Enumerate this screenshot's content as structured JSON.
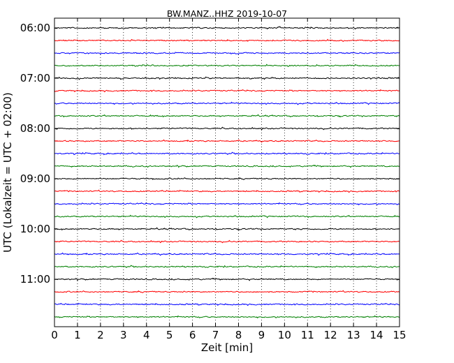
{
  "chart_data": {
    "type": "line",
    "title": "BW.MANZ..HHZ 2019-10-07",
    "xlabel": "Zeit  [min]",
    "ylabel": "UTC (Lokalzeit = UTC + 02:00)",
    "xlim": [
      0,
      15
    ],
    "x_ticks": [
      0,
      1,
      2,
      3,
      4,
      5,
      6,
      7,
      8,
      9,
      10,
      11,
      12,
      13,
      14,
      15
    ],
    "x_tick_labels": [
      "0",
      "1",
      "2",
      "3",
      "4",
      "5",
      "6",
      "7",
      "8",
      "9",
      "10",
      "11",
      "12",
      "13",
      "14",
      "15"
    ],
    "y_tick_labels": [
      "06:00",
      "07:00",
      "08:00",
      "09:00",
      "10:00",
      "11:00"
    ],
    "grid": "vertical-dotted",
    "trace_colors": [
      "#000000",
      "#ff0000",
      "#0000ff",
      "#008000"
    ],
    "traces": [
      {
        "start": "06:00",
        "color": "#000000"
      },
      {
        "start": "06:15",
        "color": "#ff0000"
      },
      {
        "start": "06:30",
        "color": "#0000ff"
      },
      {
        "start": "06:45",
        "color": "#008000"
      },
      {
        "start": "07:00",
        "color": "#000000"
      },
      {
        "start": "07:15",
        "color": "#ff0000"
      },
      {
        "start": "07:30",
        "color": "#0000ff"
      },
      {
        "start": "07:45",
        "color": "#008000"
      },
      {
        "start": "08:00",
        "color": "#000000"
      },
      {
        "start": "08:15",
        "color": "#ff0000"
      },
      {
        "start": "08:30",
        "color": "#0000ff"
      },
      {
        "start": "08:45",
        "color": "#008000"
      },
      {
        "start": "09:00",
        "color": "#000000"
      },
      {
        "start": "09:15",
        "color": "#ff0000"
      },
      {
        "start": "09:30",
        "color": "#0000ff"
      },
      {
        "start": "09:45",
        "color": "#008000"
      },
      {
        "start": "10:00",
        "color": "#000000"
      },
      {
        "start": "10:15",
        "color": "#ff0000"
      },
      {
        "start": "10:30",
        "color": "#0000ff"
      },
      {
        "start": "10:45",
        "color": "#008000"
      },
      {
        "start": "11:00",
        "color": "#000000"
      },
      {
        "start": "11:15",
        "color": "#ff0000"
      },
      {
        "start": "11:30",
        "color": "#0000ff"
      },
      {
        "start": "11:45",
        "color": "#008000"
      }
    ]
  }
}
